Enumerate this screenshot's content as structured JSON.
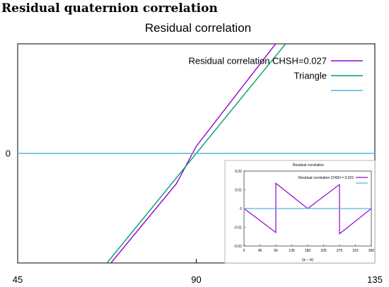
{
  "page": {
    "heading": "Residual quaternion correlation"
  },
  "chart_data": [
    {
      "type": "line",
      "title": "Residual correlation",
      "xlabel": "",
      "ylabel": "",
      "xlim": [
        45,
        135
      ],
      "ylim": [
        -0.0017,
        0.0017
      ],
      "xticks": [
        45,
        90,
        135
      ],
      "yticks": [
        0
      ],
      "ytick_labels": [
        "0"
      ],
      "grid": false,
      "legend_position": "top-right",
      "series": [
        {
          "name": "Residual correlation CHSH=0.027",
          "color": "#9400d3",
          "x": [
            68.5,
            85,
            90,
            110
          ],
          "y": [
            -0.0017,
            -0.00047,
            0.00011,
            0.0017
          ]
        },
        {
          "name": "Triangle",
          "color": "#009e73",
          "x": [
            67.5,
            112.5
          ],
          "y": [
            -0.0017,
            0.0017
          ]
        },
        {
          "name": "",
          "color": "#56b4e9",
          "x": [
            45,
            135
          ],
          "y": [
            0,
            0
          ]
        }
      ]
    },
    {
      "type": "line",
      "title": "Residual correlation",
      "xlabel": "(a − b)",
      "ylabel": "",
      "xlim": [
        0,
        360
      ],
      "ylim": [
        -0.02,
        0.02
      ],
      "xticks": [
        0,
        45,
        90,
        135,
        180,
        225,
        270,
        315,
        360
      ],
      "yticks": [
        -0.02,
        -0.01,
        0,
        0.01,
        0.02
      ],
      "ytick_labels": [
        "-0.02",
        "-0.01",
        "0",
        "0.01",
        "0.02"
      ],
      "grid": false,
      "legend_position": "top-right",
      "series": [
        {
          "name": "Residual correlation CHSH = 0.022",
          "color": "#9400d3",
          "x": [
            0,
            90,
            90,
            180,
            270,
            270,
            360
          ],
          "y": [
            0,
            -0.0128,
            0.0135,
            0,
            0.0128,
            -0.0135,
            0
          ]
        },
        {
          "name": "",
          "color": "#56b4e9",
          "x": [
            0,
            360
          ],
          "y": [
            0,
            0
          ]
        }
      ]
    }
  ]
}
